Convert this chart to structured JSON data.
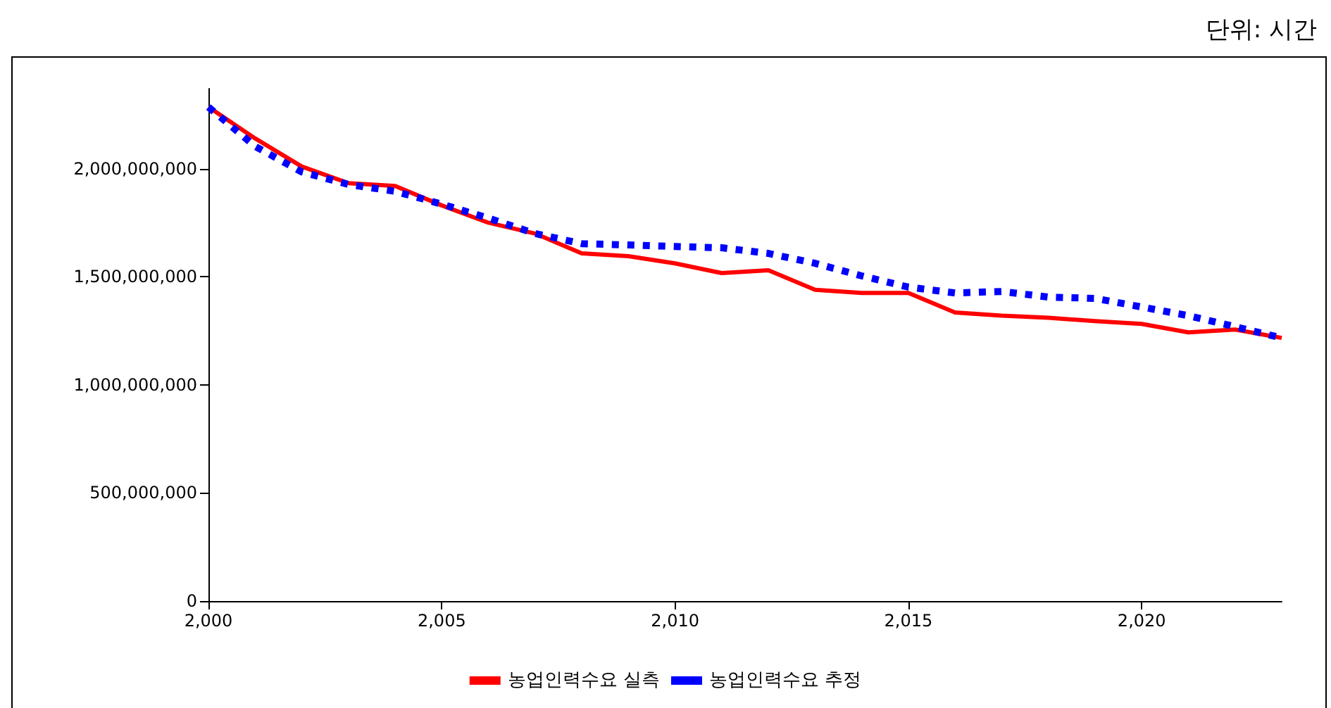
{
  "chart_data": {
    "type": "line",
    "annotations": [
      "단위: 시간"
    ],
    "x": [
      2000,
      2001,
      2002,
      2003,
      2004,
      2005,
      2006,
      2007,
      2008,
      2009,
      2010,
      2011,
      2012,
      2013,
      2014,
      2015,
      2016,
      2017,
      2018,
      2019,
      2020,
      2021,
      2022,
      2023
    ],
    "series": [
      {
        "name": "농업인력수요 실측",
        "color": "#ff0000",
        "line_style": "solid",
        "values": [
          2285000000,
          2140000000,
          2010000000,
          1933000000,
          1920000000,
          1830000000,
          1750000000,
          1700000000,
          1608000000,
          1595000000,
          1562000000,
          1517000000,
          1530000000,
          1440000000,
          1425000000,
          1425000000,
          1335000000,
          1320000000,
          1310000000,
          1295000000,
          1282000000,
          1243000000,
          1256000000,
          1217000000
        ]
      },
      {
        "name": "농업인력수요 추정",
        "color": "#0000ff",
        "line_style": "dotted",
        "values": [
          2285000000,
          2103000000,
          1985000000,
          1927000000,
          1895000000,
          1836000000,
          1771000000,
          1700000000,
          1653000000,
          1647000000,
          1640000000,
          1634000000,
          1608000000,
          1562000000,
          1504000000,
          1452000000,
          1425000000,
          1432000000,
          1406000000,
          1400000000,
          1360000000,
          1320000000,
          1269000000,
          1217000000
        ]
      }
    ],
    "xlim": [
      2000,
      2023
    ],
    "xticks": [
      {
        "value": 2000,
        "label": "2,000"
      },
      {
        "value": 2005,
        "label": "2,005"
      },
      {
        "value": 2010,
        "label": "2,010"
      },
      {
        "value": 2015,
        "label": "2,015"
      },
      {
        "value": 2020,
        "label": "2,020"
      }
    ],
    "ylim": [
      0,
      2370000000
    ],
    "yticks": [
      0,
      {
        "value": 500000000,
        "label": "500,000,000"
      },
      {
        "value": 1000000000,
        "label": "1,000,000,000"
      },
      {
        "value": 1500000000,
        "label": "1,500,000,000"
      },
      {
        "value": 2000000000,
        "label": "2,000,000,000"
      }
    ],
    "grid": false,
    "legend": "bottom",
    "marker": "none"
  }
}
